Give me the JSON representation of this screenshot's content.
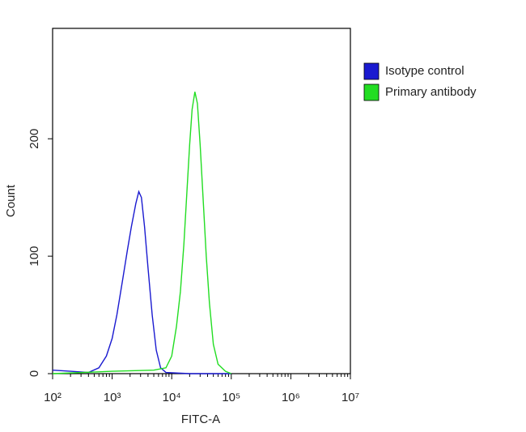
{
  "chart_data": {
    "type": "line",
    "xlabel": "FITC-A",
    "ylabel": "Count",
    "xscale": "log",
    "xlim": [
      100,
      10000000
    ],
    "xticks": [
      {
        "value": 100,
        "label": "10²"
      },
      {
        "value": 1000,
        "label": "10³"
      },
      {
        "value": 10000,
        "label": "10⁴"
      },
      {
        "value": 100000,
        "label": "10⁵"
      },
      {
        "value": 1000000,
        "label": "10⁶"
      },
      {
        "value": 10000000,
        "label": "10⁷"
      }
    ],
    "ylim": [
      0,
      294
    ],
    "yticks": [
      0,
      100,
      200
    ],
    "legend": "right",
    "series": [
      {
        "name": "Isotype control",
        "color": "#1a1ad0",
        "x": [
          100,
          200,
          400,
          600,
          800,
          1000,
          1200,
          1500,
          1800,
          2100,
          2500,
          2800,
          3100,
          3500,
          4000,
          4700,
          5500,
          6500,
          8000,
          20000,
          100000
        ],
        "values": [
          3,
          2,
          1,
          5,
          15,
          30,
          50,
          80,
          105,
          125,
          145,
          155,
          150,
          125,
          90,
          50,
          20,
          5,
          1,
          0,
          0
        ]
      },
      {
        "name": "Primary antibody",
        "color": "#22dd22",
        "x": [
          100,
          1000,
          5000,
          8000,
          10000,
          12000,
          14000,
          16000,
          18000,
          20000,
          22000,
          24500,
          27000,
          30000,
          34000,
          38000,
          43000,
          50000,
          60000,
          80000,
          100000
        ],
        "values": [
          0,
          2,
          3,
          5,
          15,
          40,
          70,
          110,
          155,
          195,
          225,
          240,
          230,
          195,
          145,
          100,
          60,
          25,
          8,
          2,
          0
        ]
      }
    ]
  }
}
